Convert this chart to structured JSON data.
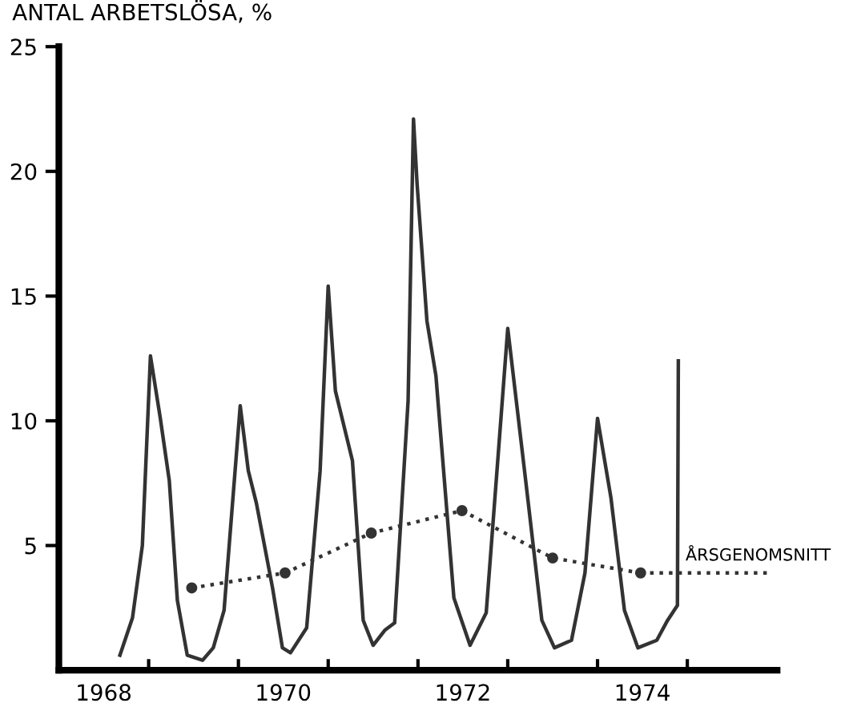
{
  "chart_data": {
    "type": "line",
    "ylabel": "ANTAL ARBETSLÖSA, %",
    "xlim": [
      1968,
      1976
    ],
    "ylim": [
      0,
      25
    ],
    "xticks": [
      {
        "value": 1968.5,
        "label": "1968"
      },
      {
        "value": 1969,
        "label": null
      },
      {
        "value": 1970,
        "label": null
      },
      {
        "value": 1970.5,
        "label": "1970"
      },
      {
        "value": 1971,
        "label": null
      },
      {
        "value": 1972,
        "label": null
      },
      {
        "value": 1972.5,
        "label": "1972"
      },
      {
        "value": 1973,
        "label": null
      },
      {
        "value": 1974,
        "label": null
      },
      {
        "value": 1974.5,
        "label": "1974"
      },
      {
        "value": 1975,
        "label": null
      }
    ],
    "yticks": [
      5,
      10,
      15,
      20,
      25
    ],
    "grid": false,
    "series": [
      {
        "color": "#333333",
        "marker": "none",
        "line_style": "solid",
        "x": [
          1968.68,
          1968.82,
          1968.93,
          1969.02,
          1969.13,
          1969.23,
          1969.32,
          1969.43,
          1969.6,
          1969.72,
          1969.84,
          1970.02,
          1970.11,
          1970.2,
          1970.38,
          1970.49,
          1970.58,
          1970.76,
          1970.91,
          1971.0,
          1971.08,
          1971.27,
          1971.39,
          1971.5,
          1971.63,
          1971.74,
          1971.89,
          1971.95,
          1971.99,
          1972.1,
          1972.2,
          1972.4,
          1972.58,
          1972.76,
          1973.0,
          1973.2,
          1973.38,
          1973.52,
          1973.71,
          1973.86,
          1974.0,
          1974.15,
          1974.3,
          1974.45,
          1974.66,
          1974.78,
          1974.89,
          1974.9
        ],
        "values": [
          0.6,
          2.1,
          5.0,
          12.6,
          10.1,
          7.6,
          2.8,
          0.6,
          0.4,
          0.9,
          2.4,
          10.6,
          8.0,
          6.7,
          3.3,
          0.9,
          0.7,
          1.7,
          8.0,
          15.4,
          11.2,
          8.4,
          2.0,
          1.0,
          1.6,
          1.9,
          10.8,
          22.1,
          19.5,
          14.0,
          11.8,
          2.9,
          1.0,
          2.3,
          13.7,
          7.6,
          2.0,
          0.9,
          1.2,
          3.9,
          10.1,
          6.9,
          2.4,
          0.9,
          1.2,
          2.0,
          2.6,
          12.4
        ]
      },
      {
        "color": "#333333",
        "marker": "circle",
        "line_style": "dotted",
        "x": [
          1969.48,
          1970.52,
          1971.48,
          1972.49,
          1973.5,
          1974.48
        ],
        "values": [
          3.3,
          3.9,
          5.5,
          6.4,
          4.5,
          3.9
        ]
      },
      {
        "color": "#333333",
        "marker": "none",
        "line_style": "dotted",
        "x": [
          1974.48,
          1975.94
        ],
        "values": [
          3.9,
          3.9
        ]
      }
    ],
    "annotations": [
      {
        "text": "ÅRSGENOMSNITT",
        "x": 1974.98,
        "y": 3.9
      }
    ]
  }
}
